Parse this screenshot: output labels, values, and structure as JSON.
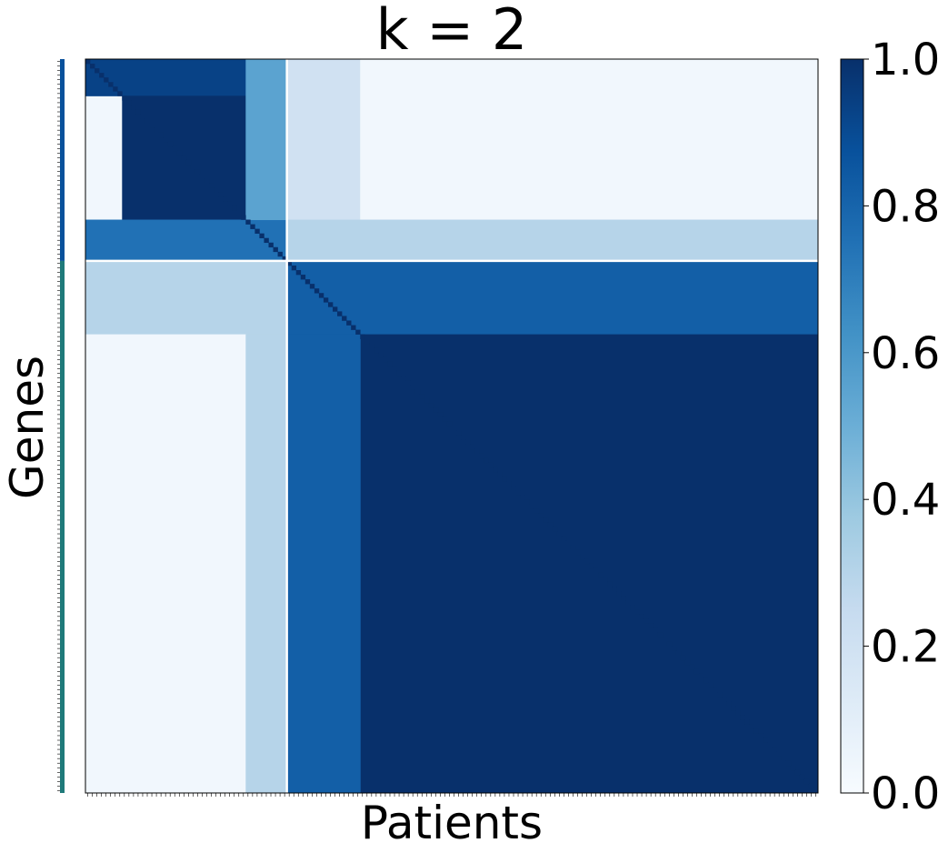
{
  "chart_data": {
    "type": "heatmap",
    "title": "k = 2",
    "xlabel": "Patients",
    "ylabel": "Genes",
    "colormap": "Blues",
    "colorbar": {
      "range": [
        0.0,
        1.0
      ],
      "ticks": [
        "0.0",
        "0.2",
        "0.4",
        "0.6",
        "0.8",
        "1.0"
      ],
      "colors": [
        "#f7fbff",
        "#deebf7",
        "#c6dbef",
        "#9ecae1",
        "#6baed6",
        "#4292c6",
        "#2171b5",
        "#08519c",
        "#08306b"
      ]
    },
    "n_samples": 160,
    "cluster_boundary_index": 44,
    "cluster_colors": [
      "#08519c",
      "#1f7a7a"
    ],
    "grid": false,
    "blocks": [
      {
        "rows": [
          0,
          8
        ],
        "cols": [
          0,
          35
        ],
        "value": 0.93
      },
      {
        "rows": [
          8,
          35
        ],
        "cols": [
          8,
          35
        ],
        "value": 1.0
      },
      {
        "rows": [
          35,
          44
        ],
        "cols": [
          0,
          44
        ],
        "value": 0.75
      },
      {
        "rows": [
          44,
          60
        ],
        "cols": [
          44,
          160
        ],
        "value": 0.82
      },
      {
        "rows": [
          60,
          160
        ],
        "cols": [
          60,
          160
        ],
        "value": 1.0
      },
      {
        "rows": [
          0,
          35
        ],
        "cols": [
          35,
          44
        ],
        "value": 0.55
      },
      {
        "rows": [
          0,
          35
        ],
        "cols": [
          44,
          60
        ],
        "value": 0.2
      },
      {
        "rows": [
          0,
          35
        ],
        "cols": [
          60,
          160
        ],
        "value": 0.03
      },
      {
        "rows": [
          35,
          44
        ],
        "cols": [
          44,
          160
        ],
        "value": 0.3
      },
      {
        "rows": [
          44,
          60
        ],
        "cols": [
          0,
          44
        ],
        "value": 0.3
      },
      {
        "rows": [
          60,
          160
        ],
        "cols": [
          0,
          35
        ],
        "value": 0.03
      },
      {
        "rows": [
          60,
          160
        ],
        "cols": [
          35,
          44
        ],
        "value": 0.3
      },
      {
        "rows": [
          60,
          160
        ],
        "cols": [
          44,
          60
        ],
        "value": 0.82
      }
    ]
  }
}
